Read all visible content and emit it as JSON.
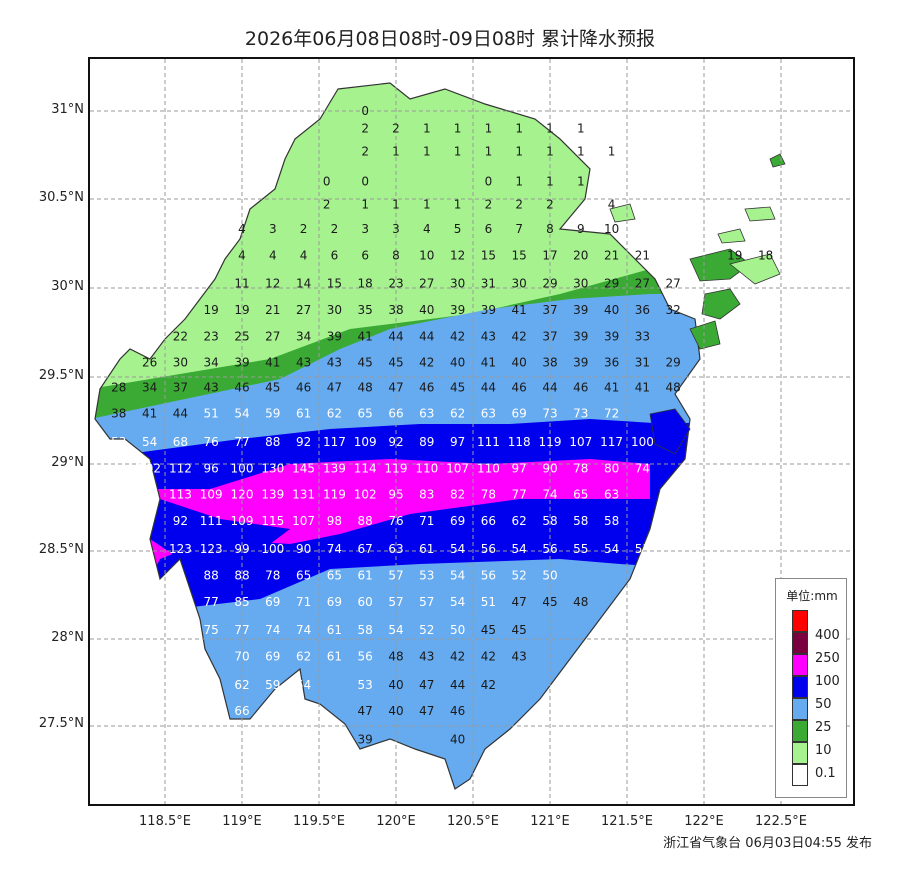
{
  "title": "2026年06月08日08时-09日08时 累计降水预报",
  "footer": "浙江省气象台 06月03日04:55 发布",
  "axes": {
    "lat_labels": [
      "31°N",
      "30.5°N",
      "30°N",
      "29.5°N",
      "29°N",
      "28.5°N",
      "28°N",
      "27.5°N"
    ],
    "lon_labels": [
      "118.5°E",
      "119°E",
      "119.5°E",
      "120°E",
      "120.5°E",
      "121°E",
      "121.5°E",
      "122°E",
      "122.5°E"
    ]
  },
  "legend": {
    "title": "单位:mm",
    "items": [
      {
        "label": "400",
        "color": "#ff0000"
      },
      {
        "label": "250",
        "color": "#7a0040"
      },
      {
        "label": "100",
        "color": "#ff00ff"
      },
      {
        "label": "50",
        "color": "#0000ee"
      },
      {
        "label": "25",
        "color": "#66aaf0"
      },
      {
        "label": "10",
        "color": "#3aaa35"
      },
      {
        "label": "0.1",
        "color": "#a6f28f"
      },
      {
        "label": "",
        "color": "#ffffff"
      }
    ]
  },
  "rows": [
    {
      "lat": 31.0,
      "values": [
        [
          "119.8",
          "0"
        ]
      ]
    },
    {
      "lat": 30.9,
      "values": [
        [
          "119.8",
          "2"
        ],
        [
          "120.0",
          "2"
        ],
        [
          "120.2",
          "1"
        ],
        [
          "120.4",
          "1"
        ],
        [
          "120.6",
          "1"
        ],
        [
          "120.8",
          "1"
        ],
        [
          "121.0",
          "1"
        ],
        [
          "121.2",
          "1"
        ]
      ]
    },
    {
      "lat": 30.77,
      "values": [
        [
          "119.8",
          "2"
        ],
        [
          "120.0",
          "1"
        ],
        [
          "120.2",
          "1"
        ],
        [
          "120.4",
          "1"
        ],
        [
          "120.6",
          "1"
        ],
        [
          "120.8",
          "1"
        ],
        [
          "121.0",
          "1"
        ],
        [
          "121.2",
          "1"
        ],
        [
          "121.4",
          "1"
        ]
      ]
    },
    {
      "lat": 30.6,
      "values": [
        [
          "119.55",
          "0"
        ],
        [
          "119.8",
          "0"
        ],
        [
          "120.6",
          "0"
        ],
        [
          "120.8",
          "1"
        ],
        [
          "121.0",
          "1"
        ],
        [
          "121.2",
          "1"
        ]
      ]
    },
    {
      "lat": 30.47,
      "values": [
        [
          "119.55",
          "2"
        ],
        [
          "119.8",
          "1"
        ],
        [
          "120.0",
          "1"
        ],
        [
          "120.2",
          "1"
        ],
        [
          "120.4",
          "1"
        ],
        [
          "120.6",
          "2"
        ],
        [
          "120.8",
          "2"
        ],
        [
          "121.0",
          "2"
        ],
        [
          "121.4",
          "4"
        ]
      ]
    },
    {
      "lat": 30.33,
      "values": [
        [
          "119.0",
          "4"
        ],
        [
          "119.2",
          "3"
        ],
        [
          "119.4",
          "2"
        ],
        [
          "119.6",
          "2"
        ],
        [
          "119.8",
          "3"
        ],
        [
          "120.0",
          "3"
        ],
        [
          "120.2",
          "4"
        ],
        [
          "120.4",
          "5"
        ],
        [
          "120.6",
          "6"
        ],
        [
          "120.8",
          "7"
        ],
        [
          "121.0",
          "8"
        ],
        [
          "121.2",
          "9"
        ],
        [
          "121.4",
          "10"
        ]
      ]
    },
    {
      "lat": 30.18,
      "values": [
        [
          "119.0",
          "4"
        ],
        [
          "119.2",
          "4"
        ],
        [
          "119.4",
          "4"
        ],
        [
          "119.6",
          "6"
        ],
        [
          "119.8",
          "6"
        ],
        [
          "120.0",
          "8"
        ],
        [
          "120.2",
          "10"
        ],
        [
          "120.4",
          "12"
        ],
        [
          "120.6",
          "15"
        ],
        [
          "120.8",
          "15"
        ],
        [
          "121.0",
          "17"
        ],
        [
          "121.2",
          "20"
        ],
        [
          "121.4",
          "21"
        ],
        [
          "121.6",
          "21"
        ],
        [
          "122.2",
          "19"
        ],
        [
          "122.4",
          "18"
        ]
      ]
    },
    {
      "lat": 30.02,
      "values": [
        [
          "119.0",
          "11"
        ],
        [
          "119.2",
          "12"
        ],
        [
          "119.4",
          "14"
        ],
        [
          "119.6",
          "15"
        ],
        [
          "119.8",
          "18"
        ],
        [
          "120.0",
          "23"
        ],
        [
          "120.2",
          "27"
        ],
        [
          "120.4",
          "30"
        ],
        [
          "120.6",
          "31"
        ],
        [
          "120.8",
          "30"
        ],
        [
          "121.0",
          "29"
        ],
        [
          "121.2",
          "30"
        ],
        [
          "121.4",
          "29"
        ],
        [
          "121.6",
          "27"
        ],
        [
          "121.8",
          "27"
        ]
      ]
    },
    {
      "lat": 29.87,
      "values": [
        [
          "118.8",
          "19"
        ],
        [
          "119.0",
          "19"
        ],
        [
          "119.2",
          "21"
        ],
        [
          "119.4",
          "27"
        ],
        [
          "119.6",
          "30"
        ],
        [
          "119.8",
          "35"
        ],
        [
          "120.0",
          "38"
        ],
        [
          "120.2",
          "40"
        ],
        [
          "120.4",
          "39"
        ],
        [
          "120.6",
          "39"
        ],
        [
          "120.8",
          "41"
        ],
        [
          "121.0",
          "37"
        ],
        [
          "121.2",
          "39"
        ],
        [
          "121.4",
          "40"
        ],
        [
          "121.6",
          "36"
        ],
        [
          "121.8",
          "32"
        ]
      ]
    },
    {
      "lat": 29.72,
      "values": [
        [
          "118.6",
          "22"
        ],
        [
          "118.8",
          "23"
        ],
        [
          "119.0",
          "25"
        ],
        [
          "119.2",
          "27"
        ],
        [
          "119.4",
          "34"
        ],
        [
          "119.6",
          "39"
        ],
        [
          "119.8",
          "41"
        ],
        [
          "120.0",
          "44"
        ],
        [
          "120.2",
          "44"
        ],
        [
          "120.4",
          "42"
        ],
        [
          "120.6",
          "43"
        ],
        [
          "120.8",
          "42"
        ],
        [
          "121.0",
          "37"
        ],
        [
          "121.2",
          "39"
        ],
        [
          "121.4",
          "39"
        ],
        [
          "121.6",
          "33"
        ]
      ]
    },
    {
      "lat": 29.57,
      "values": [
        [
          "118.4",
          "26"
        ],
        [
          "118.6",
          "30"
        ],
        [
          "118.8",
          "34"
        ],
        [
          "119.0",
          "39"
        ],
        [
          "119.2",
          "41"
        ],
        [
          "119.4",
          "43"
        ],
        [
          "119.6",
          "43"
        ],
        [
          "119.8",
          "45"
        ],
        [
          "120.0",
          "45"
        ],
        [
          "120.2",
          "42"
        ],
        [
          "120.4",
          "40"
        ],
        [
          "120.6",
          "41"
        ],
        [
          "120.8",
          "40"
        ],
        [
          "121.0",
          "38"
        ],
        [
          "121.2",
          "39"
        ],
        [
          "121.4",
          "36"
        ],
        [
          "121.6",
          "31"
        ],
        [
          "121.8",
          "29"
        ]
      ]
    },
    {
      "lat": 29.43,
      "values": [
        [
          "118.2",
          "28"
        ],
        [
          "118.4",
          "34"
        ],
        [
          "118.6",
          "37"
        ],
        [
          "118.8",
          "43"
        ],
        [
          "119.0",
          "46"
        ],
        [
          "119.2",
          "45"
        ],
        [
          "119.4",
          "46"
        ],
        [
          "119.6",
          "47"
        ],
        [
          "119.8",
          "48"
        ],
        [
          "120.0",
          "47"
        ],
        [
          "120.2",
          "46"
        ],
        [
          "120.4",
          "45"
        ],
        [
          "120.6",
          "44"
        ],
        [
          "120.8",
          "46"
        ],
        [
          "121.0",
          "44"
        ],
        [
          "121.2",
          "46"
        ],
        [
          "121.4",
          "41"
        ],
        [
          "121.6",
          "41"
        ],
        [
          "121.8",
          "48"
        ]
      ]
    },
    {
      "lat": 29.28,
      "values": [
        [
          "118.2",
          "38"
        ],
        [
          "118.4",
          "41"
        ],
        [
          "118.6",
          "44"
        ],
        [
          "118.8",
          "51"
        ],
        [
          "119.0",
          "54"
        ],
        [
          "119.2",
          "59"
        ],
        [
          "119.4",
          "61"
        ],
        [
          "119.6",
          "62"
        ],
        [
          "119.8",
          "65"
        ],
        [
          "120.0",
          "66"
        ],
        [
          "120.2",
          "63"
        ],
        [
          "120.4",
          "62"
        ],
        [
          "120.6",
          "63"
        ],
        [
          "120.8",
          "69"
        ],
        [
          "121.0",
          "73"
        ],
        [
          "121.2",
          "73"
        ],
        [
          "121.4",
          "72"
        ]
      ]
    },
    {
      "lat": 29.12,
      "values": [
        [
          "118.2",
          "53"
        ],
        [
          "118.4",
          "54"
        ],
        [
          "118.6",
          "68"
        ],
        [
          "118.8",
          "76"
        ],
        [
          "119.0",
          "77"
        ],
        [
          "119.2",
          "88"
        ],
        [
          "119.4",
          "92"
        ],
        [
          "119.6",
          "117"
        ],
        [
          "119.8",
          "109"
        ],
        [
          "120.0",
          "92"
        ],
        [
          "120.2",
          "89"
        ],
        [
          "120.4",
          "97"
        ],
        [
          "120.6",
          "111"
        ],
        [
          "120.8",
          "118"
        ],
        [
          "121.0",
          "119"
        ],
        [
          "121.2",
          "107"
        ],
        [
          "121.4",
          "117"
        ],
        [
          "121.6",
          "100"
        ]
      ]
    },
    {
      "lat": 28.97,
      "values": [
        [
          "118.4",
          "102"
        ],
        [
          "118.6",
          "112"
        ],
        [
          "118.8",
          "96"
        ],
        [
          "119.0",
          "100"
        ],
        [
          "119.2",
          "130"
        ],
        [
          "119.4",
          "145"
        ],
        [
          "119.6",
          "139"
        ],
        [
          "119.8",
          "114"
        ],
        [
          "120.0",
          "119"
        ],
        [
          "120.2",
          "110"
        ],
        [
          "120.4",
          "107"
        ],
        [
          "120.6",
          "110"
        ],
        [
          "120.8",
          "97"
        ],
        [
          "121.0",
          "90"
        ],
        [
          "121.2",
          "78"
        ],
        [
          "121.4",
          "80"
        ],
        [
          "121.6",
          "74"
        ]
      ]
    },
    {
      "lat": 28.82,
      "values": [
        [
          "118.6",
          "113"
        ],
        [
          "118.8",
          "109"
        ],
        [
          "119.0",
          "120"
        ],
        [
          "119.2",
          "139"
        ],
        [
          "119.4",
          "131"
        ],
        [
          "119.6",
          "119"
        ],
        [
          "119.8",
          "102"
        ],
        [
          "120.0",
          "95"
        ],
        [
          "120.2",
          "83"
        ],
        [
          "120.4",
          "82"
        ],
        [
          "120.6",
          "78"
        ],
        [
          "120.8",
          "77"
        ],
        [
          "121.0",
          "74"
        ],
        [
          "121.2",
          "65"
        ],
        [
          "121.4",
          "63"
        ]
      ]
    },
    {
      "lat": 28.67,
      "values": [
        [
          "118.6",
          "92"
        ],
        [
          "118.8",
          "111"
        ],
        [
          "119.0",
          "109"
        ],
        [
          "119.2",
          "115"
        ],
        [
          "119.4",
          "107"
        ],
        [
          "119.6",
          "98"
        ],
        [
          "119.8",
          "88"
        ],
        [
          "120.0",
          "76"
        ],
        [
          "120.2",
          "71"
        ],
        [
          "120.4",
          "69"
        ],
        [
          "120.6",
          "66"
        ],
        [
          "120.8",
          "62"
        ],
        [
          "121.0",
          "58"
        ],
        [
          "121.2",
          "58"
        ],
        [
          "121.4",
          "58"
        ]
      ]
    },
    {
      "lat": 28.51,
      "values": [
        [
          "118.6",
          "123"
        ],
        [
          "118.8",
          "123"
        ],
        [
          "119.0",
          "99"
        ],
        [
          "119.2",
          "100"
        ],
        [
          "119.4",
          "90"
        ],
        [
          "119.6",
          "74"
        ],
        [
          "119.8",
          "67"
        ],
        [
          "120.0",
          "63"
        ],
        [
          "120.2",
          "61"
        ],
        [
          "120.4",
          "54"
        ],
        [
          "120.6",
          "56"
        ],
        [
          "120.8",
          "54"
        ],
        [
          "121.0",
          "56"
        ],
        [
          "121.2",
          "55"
        ],
        [
          "121.4",
          "54"
        ],
        [
          "121.6",
          "53"
        ]
      ]
    },
    {
      "lat": 28.36,
      "values": [
        [
          "118.8",
          "88"
        ],
        [
          "119.0",
          "88"
        ],
        [
          "119.2",
          "78"
        ],
        [
          "119.4",
          "65"
        ],
        [
          "119.6",
          "65"
        ],
        [
          "119.8",
          "61"
        ],
        [
          "120.0",
          "57"
        ],
        [
          "120.2",
          "53"
        ],
        [
          "120.4",
          "54"
        ],
        [
          "120.6",
          "56"
        ],
        [
          "120.8",
          "52"
        ],
        [
          "121.0",
          "50"
        ]
      ]
    },
    {
      "lat": 28.21,
      "values": [
        [
          "118.8",
          "77"
        ],
        [
          "119.0",
          "85"
        ],
        [
          "119.2",
          "69"
        ],
        [
          "119.4",
          "71"
        ],
        [
          "119.6",
          "69"
        ],
        [
          "119.8",
          "60"
        ],
        [
          "120.0",
          "57"
        ],
        [
          "120.2",
          "57"
        ],
        [
          "120.4",
          "54"
        ],
        [
          "120.6",
          "51"
        ],
        [
          "120.8",
          "47"
        ],
        [
          "121.0",
          "45"
        ],
        [
          "121.2",
          "48"
        ]
      ]
    },
    {
      "lat": 28.05,
      "values": [
        [
          "118.8",
          "75"
        ],
        [
          "119.0",
          "77"
        ],
        [
          "119.2",
          "74"
        ],
        [
          "119.4",
          "74"
        ],
        [
          "119.6",
          "61"
        ],
        [
          "119.8",
          "58"
        ],
        [
          "120.0",
          "54"
        ],
        [
          "120.2",
          "52"
        ],
        [
          "120.4",
          "50"
        ],
        [
          "120.6",
          "45"
        ],
        [
          "120.8",
          "45"
        ]
      ]
    },
    {
      "lat": 27.9,
      "values": [
        [
          "119.0",
          "70"
        ],
        [
          "119.2",
          "69"
        ],
        [
          "119.4",
          "62"
        ],
        [
          "119.6",
          "61"
        ],
        [
          "119.8",
          "56"
        ],
        [
          "120.0",
          "48"
        ],
        [
          "120.2",
          "43"
        ],
        [
          "120.4",
          "42"
        ],
        [
          "120.6",
          "42"
        ],
        [
          "120.8",
          "43"
        ]
      ]
    },
    {
      "lat": 27.74,
      "values": [
        [
          "119.0",
          "62"
        ],
        [
          "119.2",
          "59"
        ],
        [
          "119.4",
          "54"
        ],
        [
          "119.8",
          "53"
        ],
        [
          "120.0",
          "40"
        ],
        [
          "120.2",
          "47"
        ],
        [
          "120.4",
          "44"
        ],
        [
          "120.6",
          "42"
        ]
      ]
    },
    {
      "lat": 27.59,
      "values": [
        [
          "119.0",
          "66"
        ],
        [
          "119.2",
          "62"
        ],
        [
          "119.8",
          "47"
        ],
        [
          "120.0",
          "40"
        ],
        [
          "120.2",
          "47"
        ],
        [
          "120.4",
          "46"
        ]
      ]
    },
    {
      "lat": 27.43,
      "values": [
        [
          "119.8",
          "39"
        ],
        [
          "120.4",
          "40"
        ]
      ]
    }
  ]
}
